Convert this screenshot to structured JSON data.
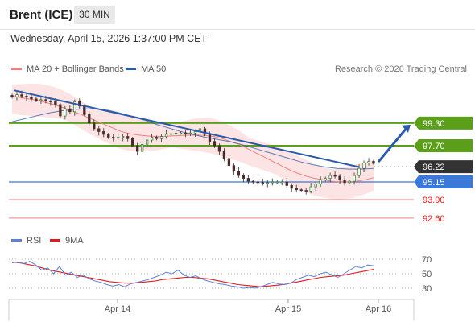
{
  "header": {
    "instrument": "Brent (ICE)",
    "timeframe": "30 MIN",
    "datetime": "Wednesday, April 15, 2026 1:37:00 PM CET"
  },
  "legend": {
    "ma20_label": "MA 20 + Bollinger Bands",
    "ma50_label": "MA 50",
    "copyright": "Research © 2026 Trading Central",
    "rsi_label": "RSI",
    "ma9_label": "9MA"
  },
  "colors": {
    "ma20": "#f08080",
    "ma50": "#2a5aa8",
    "bollinger_fill": "#fde4e4",
    "support_green": "#5b9e1a",
    "pivot_blue": "#3b78d8",
    "support_red": "#f09a9a",
    "current_price": "#333333",
    "rsi": "#5b82d6",
    "rsi_9ma": "#e01b1b",
    "trend_arrow": "#2a5aa8"
  },
  "chart_data": [
    {
      "type": "line",
      "title": "Brent (ICE)",
      "timeframe": "30 MIN",
      "x_tick_labels": [
        "Apr 14",
        "Apr 15",
        "Apr 16"
      ],
      "ylim": [
        91.8,
        102.3
      ],
      "series": [
        {
          "name": "Price",
          "values": [
            101.15,
            101.3,
            101.2,
            101.15,
            101.0,
            100.9,
            100.95,
            100.85,
            100.8,
            100.6,
            99.8,
            100.3,
            100.1,
            100.8,
            100.5,
            99.9,
            99.3,
            98.9,
            98.7,
            98.5,
            98.3,
            98.25,
            98.3,
            98.35,
            98.2,
            97.7,
            97.3,
            97.8,
            98.1,
            98.3,
            98.2,
            98.35,
            98.5,
            98.55,
            98.6,
            98.6,
            98.55,
            98.6,
            98.7,
            98.9,
            98.5,
            98.0,
            97.7,
            97.3,
            96.8,
            96.3,
            95.9,
            95.6,
            95.4,
            95.2,
            95.15,
            95.1,
            95.05,
            95.1,
            95.15,
            95.15,
            95.15,
            94.9,
            94.7,
            94.6,
            94.55,
            94.5,
            94.8,
            95.0,
            95.3,
            95.4,
            95.6,
            95.55,
            95.3,
            95.1,
            95.2,
            95.6,
            96.1,
            96.5,
            96.6,
            96.45
          ]
        },
        {
          "name": "MA 20",
          "values": [
            101.2,
            101.1,
            101.0,
            100.9,
            100.75,
            100.6,
            100.4,
            100.2,
            99.95,
            99.7,
            99.45,
            99.2,
            98.95,
            98.7,
            98.55,
            98.45,
            98.4,
            98.35,
            98.35,
            98.4,
            98.42,
            98.44,
            98.45,
            98.42,
            98.35,
            98.2,
            98.0,
            97.8,
            97.5,
            97.2,
            96.9,
            96.6,
            96.3,
            96.0,
            95.75,
            95.55,
            95.4,
            95.3,
            95.2,
            95.15,
            95.15,
            95.2,
            95.3,
            95.45
          ]
        },
        {
          "name": "MA 50",
          "values": [
            99.4,
            99.6,
            99.8,
            100.0,
            100.15,
            100.25,
            100.3,
            100.3,
            100.2,
            100.0,
            99.75,
            99.5,
            99.2,
            98.95,
            98.7,
            98.5,
            98.3,
            98.15,
            98.0,
            97.8,
            97.55,
            97.3,
            97.05,
            96.8,
            96.55,
            96.35,
            96.2,
            96.1,
            96.05,
            96.05,
            96.1
          ]
        }
      ],
      "trendline": {
        "start": 101.6,
        "end": 96.2
      },
      "projection_target": 99.3,
      "levels": [
        {
          "value": 99.3,
          "label": "99.30",
          "kind": "resistance",
          "color": "#5b9e1a",
          "style": "badge"
        },
        {
          "value": 97.7,
          "label": "97.70",
          "kind": "resistance",
          "color": "#5b9e1a",
          "style": "badge"
        },
        {
          "value": 96.22,
          "label": "96.22",
          "kind": "last",
          "color": "#333333",
          "style": "badge"
        },
        {
          "value": 95.15,
          "label": "95.15",
          "kind": "pivot",
          "color": "#3b78d8",
          "style": "badge"
        },
        {
          "value": 93.9,
          "label": "93.90",
          "kind": "support",
          "color": "#e01b1b",
          "style": "text"
        },
        {
          "value": 92.6,
          "label": "92.60",
          "kind": "support",
          "color": "#e01b1b",
          "style": "text"
        }
      ]
    },
    {
      "type": "line",
      "title": "RSI",
      "ylim": [
        20,
        80
      ],
      "y_ticks": [
        30,
        50,
        70
      ],
      "series": [
        {
          "name": "RSI",
          "values": [
            65,
            66,
            64,
            67,
            62,
            55,
            58,
            50,
            60,
            48,
            52,
            45,
            48,
            43,
            40,
            38,
            35,
            33,
            35,
            32,
            36,
            38,
            40,
            42,
            45,
            48,
            52,
            50,
            55,
            48,
            45,
            47,
            43,
            40,
            38,
            36,
            35,
            33,
            32,
            30,
            31,
            30,
            32,
            35,
            38,
            36,
            35,
            37,
            42,
            45,
            48,
            46,
            50,
            52,
            48,
            45,
            50,
            55,
            60,
            58,
            62,
            61
          ]
        },
        {
          "name": "9MA",
          "values": [
            66,
            65,
            63,
            61,
            58,
            55,
            53,
            51,
            49,
            47,
            45,
            43,
            41,
            39,
            38,
            37,
            37,
            38,
            39,
            40,
            42,
            43,
            44,
            45,
            45,
            44,
            43,
            41,
            39,
            37,
            35,
            34,
            33,
            32,
            33,
            34,
            35,
            37,
            39,
            41,
            43,
            45,
            46,
            47,
            48,
            50,
            52,
            54,
            56
          ]
        }
      ]
    }
  ]
}
